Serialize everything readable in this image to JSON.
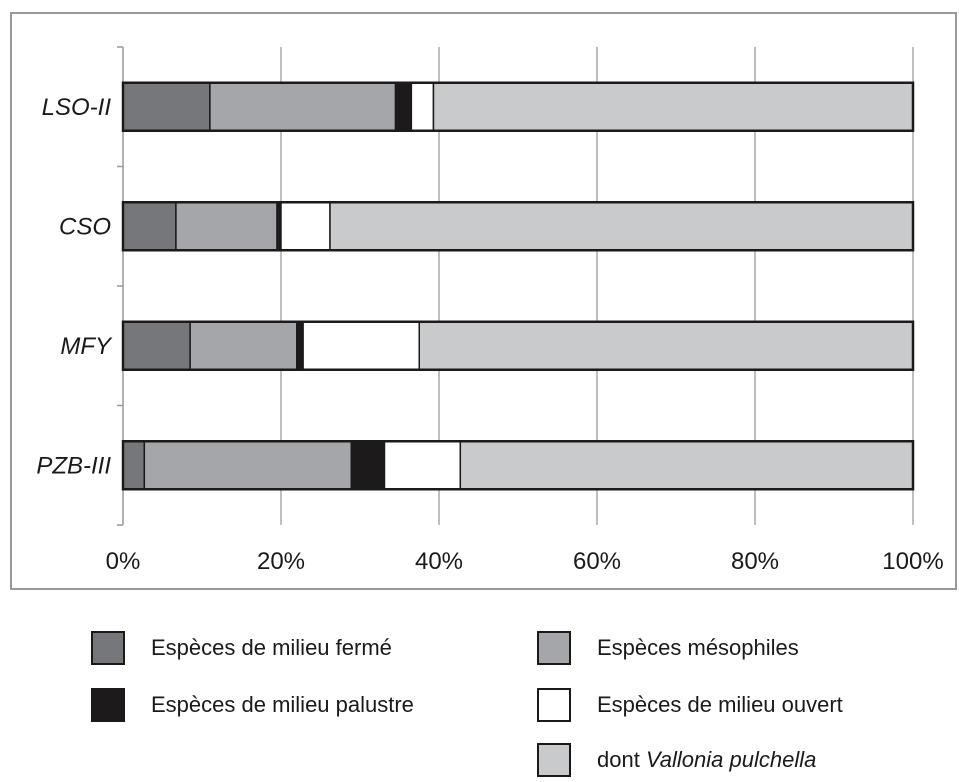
{
  "chart_data": {
    "type": "bar",
    "orientation": "horizontal",
    "stacked": true,
    "percent": true,
    "categories": [
      "LSO-II",
      "CSO",
      "MFY",
      "PZB-III"
    ],
    "series": [
      {
        "name": "Espèces de milieu fermé",
        "color": "#76777a",
        "values": [
          11,
          6.7,
          8.5,
          2.7
        ]
      },
      {
        "name": "Espèces mésophiles",
        "color": "#a5a6a9",
        "values": [
          23.5,
          12.8,
          13.5,
          26.2
        ]
      },
      {
        "name": "Espèces de milieu palustre",
        "color": "#1c1a1b",
        "values": [
          2,
          0.5,
          0.8,
          4.2
        ]
      },
      {
        "name": "Espèces de milieu ouvert",
        "color": "#ffffff",
        "values": [
          2.8,
          6.2,
          14.7,
          9.6
        ]
      },
      {
        "name_prefix": "dont ",
        "name_italic": "Vallonia pulchella",
        "color": "#c9cacc",
        "values": [
          60.7,
          73.8,
          62.5,
          57.3
        ]
      }
    ],
    "xlim": [
      0,
      100
    ],
    "xticks": [
      "0%",
      "20%",
      "40%",
      "60%",
      "80%",
      "100%"
    ],
    "grid": true,
    "legend_position": "bottom"
  }
}
